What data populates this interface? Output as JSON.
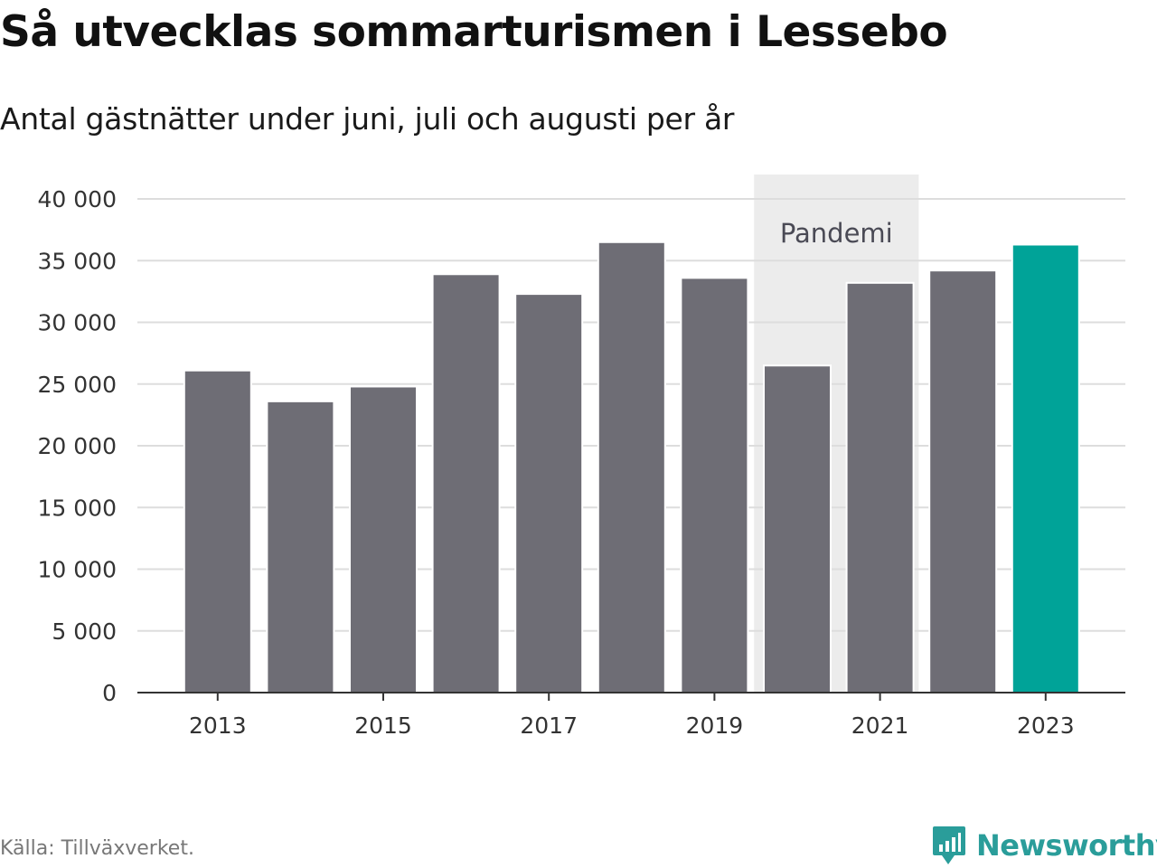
{
  "header": {
    "title": "Så utvecklas sommarturismen i Lessebo",
    "subtitle": "Antal gästnätter under juni, juli och augusti per år"
  },
  "footer": {
    "source": "Källa: Tillväxverket.",
    "brand": "Newsworthy"
  },
  "colors": {
    "bar_default": "#6e6d75",
    "bar_highlight": "#00a398",
    "annotation_band": "#ececec",
    "grid": "#dddddd",
    "brand": "#2a9d9a"
  },
  "chart_data": {
    "type": "bar",
    "title": "Så utvecklas sommarturismen i Lessebo",
    "subtitle": "Antal gästnätter under juni, juli och augusti per år",
    "categories": [
      "2013",
      "2014",
      "2015",
      "2016",
      "2017",
      "2018",
      "2019",
      "2020",
      "2021",
      "2022",
      "2023"
    ],
    "values": [
      26100,
      23600,
      24800,
      33900,
      32300,
      36500,
      33600,
      26500,
      33200,
      34200,
      36300
    ],
    "highlight": [
      "2023"
    ],
    "x_tick_labels": [
      "2013",
      "2015",
      "2017",
      "2019",
      "2021",
      "2023"
    ],
    "y_ticks": [
      0,
      5000,
      10000,
      15000,
      20000,
      25000,
      30000,
      35000,
      40000
    ],
    "y_tick_labels": [
      "0",
      "5 000",
      "10 000",
      "15 000",
      "20 000",
      "25 000",
      "30 000",
      "35 000",
      "40 000"
    ],
    "ylim": [
      0,
      40000
    ],
    "xlabel": "",
    "ylabel": "",
    "grid": true,
    "annotations": [
      {
        "label": "Pandemi",
        "from": "2020",
        "to": "2021"
      }
    ]
  }
}
